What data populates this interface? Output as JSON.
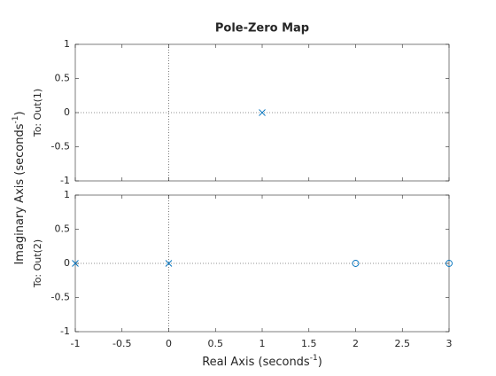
{
  "figure": {
    "title": "Pole-Zero Map",
    "xlabel": [
      "Real Axis (seconds",
      "-1",
      ")"
    ],
    "ylabel": [
      "Imaginary Axis (seconds",
      "-1",
      ")"
    ]
  },
  "chart_data": [
    {
      "type": "scatter",
      "ylabel": "To: Out(1)",
      "xlim": [
        -1,
        3
      ],
      "ylim": [
        -1,
        1
      ],
      "xticks": [
        -1,
        -0.5,
        0,
        0.5,
        1,
        1.5,
        2,
        2.5,
        3
      ],
      "yticks": [
        -1,
        -0.5,
        0,
        0.5,
        1
      ],
      "show_xticklabels": false,
      "series": [
        {
          "marker": "x",
          "color": "#0072bd",
          "x": [
            1
          ],
          "values": [
            0
          ]
        }
      ]
    },
    {
      "type": "scatter",
      "ylabel": "To: Out(2)",
      "xlim": [
        -1,
        3
      ],
      "ylim": [
        -1,
        1
      ],
      "xticks": [
        -1,
        -0.5,
        0,
        0.5,
        1,
        1.5,
        2,
        2.5,
        3
      ],
      "yticks": [
        -1,
        -0.5,
        0,
        0.5,
        1
      ],
      "show_xticklabels": true,
      "series": [
        {
          "marker": "x",
          "color": "#0072bd",
          "x": [
            -1,
            0
          ],
          "values": [
            0,
            0
          ]
        },
        {
          "marker": "o",
          "color": "#0072bd",
          "x": [
            2,
            3
          ],
          "values": [
            0,
            0
          ]
        }
      ]
    }
  ]
}
